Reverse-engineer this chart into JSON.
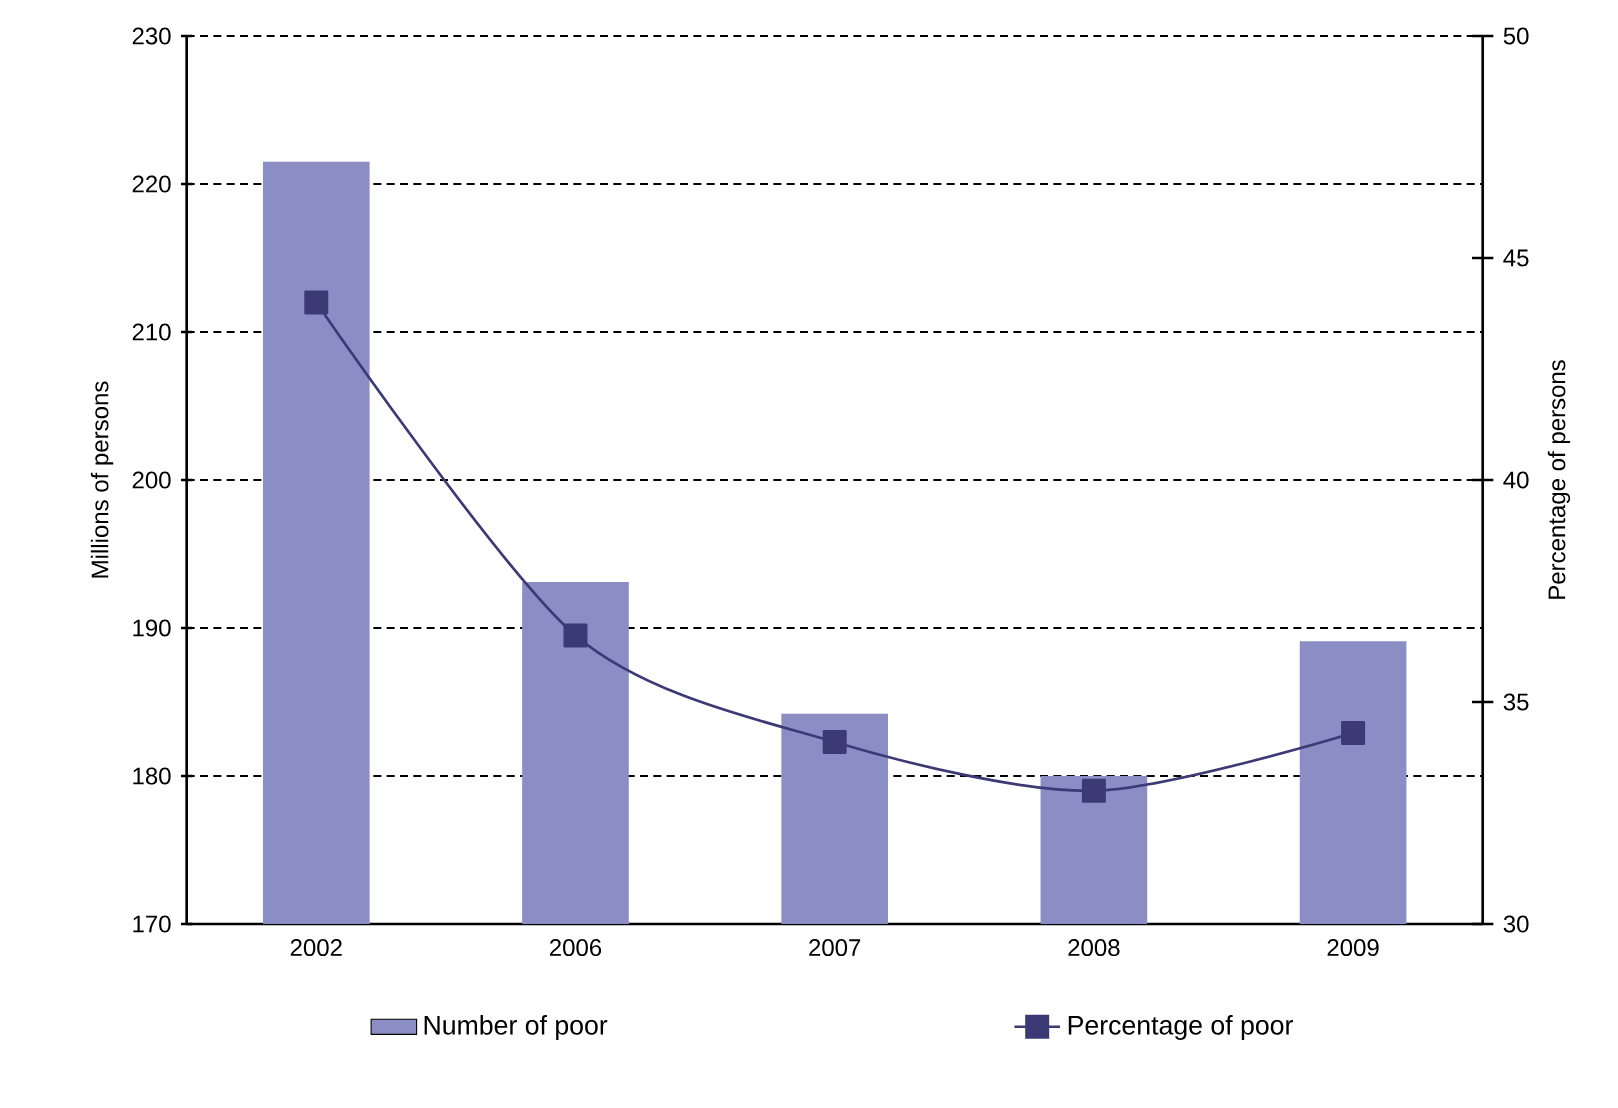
{
  "chart_data": {
    "type": "bar",
    "categories": [
      "2002",
      "2006",
      "2007",
      "2008",
      "2009"
    ],
    "series": [
      {
        "name": "Number of poor",
        "color": "#8b8ec4",
        "values": [
          221.5,
          193.1,
          184.2,
          180.0,
          189.1
        ]
      },
      {
        "name": "Percentage of poor",
        "type": "line",
        "axis": "y2",
        "color": "#3c3a74",
        "values": [
          44.0,
          36.5,
          34.1,
          33.0,
          34.3
        ]
      }
    ],
    "ylabel": "Millions of persons",
    "y2label": "Percentage of persons",
    "ylim": [
      170,
      230
    ],
    "yticks": [
      170,
      180,
      190,
      200,
      210,
      220,
      230
    ],
    "y2lim": [
      30,
      50
    ],
    "y2ticks": [
      30,
      35,
      40,
      45,
      50
    ],
    "grid": "y",
    "legend": "bottom",
    "marker": "square",
    "line_style": "solid"
  }
}
